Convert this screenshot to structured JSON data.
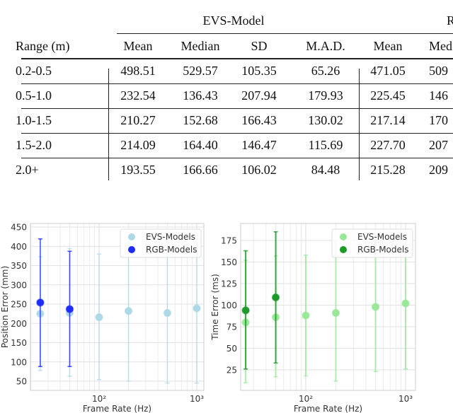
{
  "table": {
    "group_headers": [
      "EVS-Model",
      "R"
    ],
    "columns": [
      "Range (m)",
      "Mean",
      "Median",
      "SD",
      "M.A.D.",
      "Mean",
      "Med"
    ],
    "rows": [
      [
        "0.2-0.5",
        "498.51",
        "529.57",
        "105.35",
        "65.26",
        "471.05",
        "509"
      ],
      [
        "0.5-1.0",
        "232.54",
        "136.43",
        "207.94",
        "179.93",
        "225.45",
        "146"
      ],
      [
        "1.0-1.5",
        "210.27",
        "152.68",
        "166.43",
        "130.02",
        "217.14",
        "170"
      ],
      [
        "1.5-2.0",
        "214.09",
        "164.40",
        "146.47",
        "115.69",
        "227.70",
        "207"
      ],
      [
        "2.0+",
        "193.55",
        "166.66",
        "106.02",
        "84.48",
        "215.28",
        "209"
      ]
    ]
  },
  "chart_data": [
    {
      "type": "scatter",
      "xlabel": "Frame Rate (Hz)",
      "ylabel": "Position Error (mm)",
      "xscale": "log",
      "xlim": [
        20,
        1250
      ],
      "ylim": [
        35,
        455
      ],
      "yticks": [
        "50",
        "100",
        "150",
        "200",
        "250",
        "300",
        "350",
        "400",
        "450"
      ],
      "xticks": [
        "10²",
        "10³"
      ],
      "legend": "top-right",
      "series": [
        {
          "name": "EVS-Models",
          "color": "#add8e6",
          "x": [
            25,
            50,
            100,
            200,
            500,
            1000
          ],
          "y": [
            225,
            227,
            216,
            232,
            227,
            239
          ],
          "err_low": [
            78,
            63,
            54,
            50,
            45,
            45
          ],
          "err_high": [
            373,
            394,
            380,
            410,
            410,
            410
          ]
        },
        {
          "name": "RGB-Models",
          "color": "#1f2cff",
          "x": [
            25,
            50
          ],
          "y": [
            254,
            237
          ],
          "err_low": [
            88,
            88
          ],
          "err_high": [
            419,
            387
          ]
        }
      ]
    },
    {
      "type": "scatter",
      "xlabel": "Frame Rate (Hz)",
      "ylabel": "Time Error (ms)",
      "xscale": "log",
      "xlim": [
        20,
        1250
      ],
      "ylim": [
        2,
        195
      ],
      "yticks": [
        "25",
        "50",
        "75",
        "100",
        "125",
        "150",
        "175"
      ],
      "xticks": [
        "10²",
        "10³"
      ],
      "legend": "top-right",
      "series": [
        {
          "name": "EVS-Models",
          "color": "#98e898",
          "x": [
            25,
            50,
            100,
            200,
            500,
            1000
          ],
          "y": [
            80,
            86,
            88,
            91,
            98,
            102
          ],
          "err_low": [
            10,
            17,
            18,
            12,
            23,
            26
          ],
          "err_high": [
            152,
            157,
            158,
            175,
            175,
            175
          ]
        },
        {
          "name": "RGB-Models",
          "color": "#1e9a2a",
          "x": [
            25,
            50
          ],
          "y": [
            94,
            109
          ],
          "err_low": [
            26,
            33
          ],
          "err_high": [
            163,
            185
          ]
        }
      ]
    }
  ]
}
